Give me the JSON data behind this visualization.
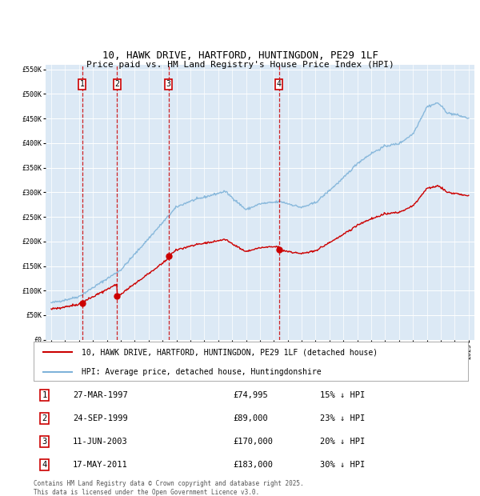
{
  "title": "10, HAWK DRIVE, HARTFORD, HUNTINGDON, PE29 1LF",
  "subtitle": "Price paid vs. HM Land Registry's House Price Index (HPI)",
  "legend_line1": "10, HAWK DRIVE, HARTFORD, HUNTINGDON, PE29 1LF (detached house)",
  "legend_line2": "HPI: Average price, detached house, Huntingdonshire",
  "footer1": "Contains HM Land Registry data © Crown copyright and database right 2025.",
  "footer2": "This data is licensed under the Open Government Licence v3.0.",
  "sales": [
    {
      "num": 1,
      "date": "27-MAR-1997",
      "price": 74995,
      "hpi_pct": "15% ↓ HPI",
      "year": 1997.23
    },
    {
      "num": 2,
      "date": "24-SEP-1999",
      "price": 89000,
      "hpi_pct": "23% ↓ HPI",
      "year": 1999.73
    },
    {
      "num": 3,
      "date": "11-JUN-2003",
      "price": 170000,
      "hpi_pct": "20% ↓ HPI",
      "year": 2003.44
    },
    {
      "num": 4,
      "date": "17-MAY-2011",
      "price": 183000,
      "hpi_pct": "30% ↓ HPI",
      "year": 2011.37
    }
  ],
  "ylim": [
    0,
    560000
  ],
  "xlim_start": 1994.6,
  "xlim_end": 2025.4,
  "yticks": [
    0,
    50000,
    100000,
    150000,
    200000,
    250000,
    300000,
    350000,
    400000,
    450000,
    500000,
    550000
  ],
  "ytick_labels": [
    "£0",
    "£50K",
    "£100K",
    "£150K",
    "£200K",
    "£250K",
    "£300K",
    "£350K",
    "£400K",
    "£450K",
    "£500K",
    "£550K"
  ],
  "background_color": "#dce9f5",
  "red_color": "#cc0000",
  "blue_color": "#7fb3d9",
  "grid_color": "#ffffff",
  "title_fontsize": 9,
  "subtitle_fontsize": 8,
  "tick_fontsize": 6,
  "legend_fontsize": 7,
  "table_fontsize": 7.5,
  "footer_fontsize": 5.5
}
